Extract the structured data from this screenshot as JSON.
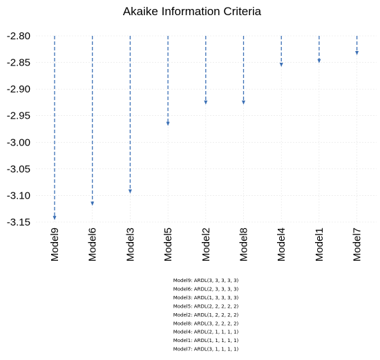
{
  "chart_data": {
    "type": "bar",
    "title": "Akaike Information Criteria",
    "xlabel": "",
    "ylabel": "",
    "ylim": [
      -3.15,
      -2.8
    ],
    "yticks": [
      "-2.80",
      "-2.85",
      "-2.90",
      "-2.95",
      "-3.00",
      "-3.05",
      "-3.10",
      "-3.15"
    ],
    "ytick_values": [
      -2.8,
      -2.85,
      -2.9,
      -2.95,
      -3.0,
      -3.05,
      -3.1,
      -3.15
    ],
    "grid": true,
    "legend": "none",
    "categories": [
      "Model9",
      "Model6",
      "Model3",
      "Model5",
      "Model2",
      "Model8",
      "Model4",
      "Model1",
      "Model7"
    ],
    "values": [
      -3.145,
      -3.118,
      -3.095,
      -2.968,
      -2.928,
      -2.928,
      -2.857,
      -2.85,
      -2.835
    ],
    "bar_style": "dashed arrow from top",
    "color": "#3a6fb5",
    "footnotes": [
      "Model9: ARDL(3, 3, 3, 3, 3)",
      "Model6: ARDL(2, 3, 3, 3, 3)",
      "Model3: ARDL(1, 3, 3, 3, 3)",
      "Model5: ARDL(2, 2, 2, 2, 2)",
      "Model2: ARDL(1, 2, 2, 2, 2)",
      "Model8: ARDL(3, 2, 2, 2, 2)",
      "Model4: ARDL(2, 1, 1, 1, 1)",
      "Model1: ARDL(1, 1, 1, 1, 1)",
      "Model7: ARDL(3, 1, 1, 1, 1)"
    ]
  }
}
